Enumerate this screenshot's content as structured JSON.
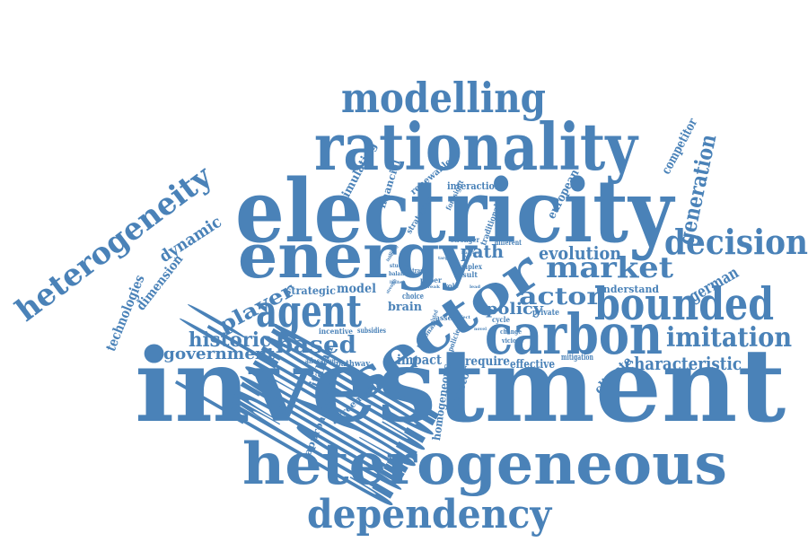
{
  "accent_color": "#4a82b8",
  "words": [
    "investment",
    "transition",
    "electricity",
    "rationality",
    "heterogeneous",
    "energy",
    "sector",
    "carbon",
    "agent",
    "bounded",
    "modelling",
    "decision",
    "dependency",
    "heterogeneity",
    "market",
    "actor",
    "imitation",
    "generation",
    "evolution",
    "historic",
    "based",
    "characteristic",
    "player",
    "government",
    "path",
    "policy",
    "german",
    "dynamic",
    "technologies",
    "dimension",
    "competitor",
    "european",
    "strategic",
    "model",
    "brain",
    "impact",
    "italian",
    "climate",
    "investor",
    "approach",
    "agreement",
    "homogeneous",
    "simulating",
    "financial",
    "renewable",
    "interaction",
    "strategies",
    "foresight",
    "traditional",
    "different",
    "stronger",
    "complex",
    "result",
    "paper",
    "contrast",
    "studies",
    "balance",
    "choice",
    "role",
    "asset",
    "subsidies",
    "incentive",
    "allocation",
    "pathway",
    "require",
    "effective",
    "mitigation",
    "understand",
    "private",
    "cycle",
    "change",
    "vicious",
    "policies",
    "rational",
    "related",
    "inherit",
    "limited",
    "strength",
    "barrier",
    "target",
    "stirred",
    "weak",
    "lead",
    "effect",
    "novel"
  ]
}
